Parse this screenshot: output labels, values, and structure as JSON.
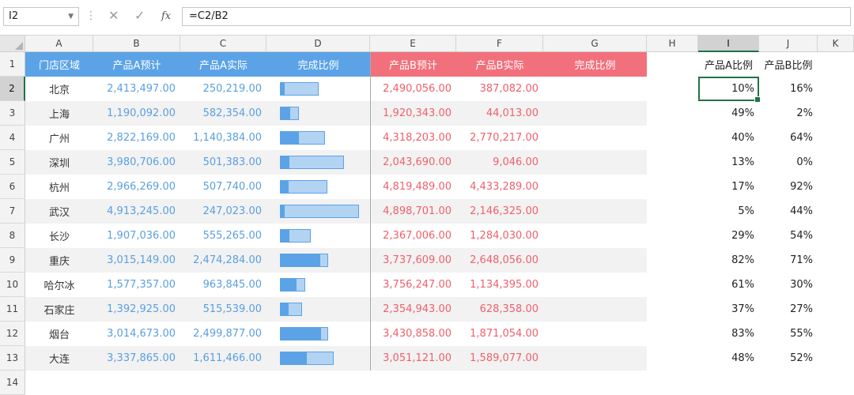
{
  "formula_bar": {
    "name_box": "I2",
    "cancel_icon": "✕",
    "confirm_icon": "✓",
    "fx_label": "fx",
    "formula": "=C2/B2"
  },
  "columns": [
    "A",
    "B",
    "C",
    "D",
    "E",
    "F",
    "G",
    "H",
    "I",
    "J",
    "K"
  ],
  "rows": [
    "1",
    "2",
    "3",
    "4",
    "5",
    "6",
    "7",
    "8",
    "9",
    "10",
    "11",
    "12",
    "13",
    "14"
  ],
  "selected_cell": "I2",
  "header": {
    "region": "门店区域",
    "a_forecast": "产品A预计",
    "a_actual": "产品A实际",
    "a_ratio": "完成比例",
    "b_forecast": "产品B预计",
    "b_actual": "产品B实际",
    "b_ratio": "完成比例",
    "ratio_a": "产品A比例",
    "ratio_b": "产品B比例"
  },
  "colors": {
    "blue_header": "#5ba3e6",
    "red_header": "#f2707c",
    "blue_text": "#5a9fe0",
    "red_text": "#f0606c",
    "bar_fill": "#5ba3e6",
    "bar_bg": "#b3d3f3",
    "selection": "#217346"
  },
  "data": [
    {
      "region": "北京",
      "a_forecast": "2,413,497.00",
      "a_actual": "250,219.00",
      "b_forecast": "2,490,056.00",
      "b_actual": "387,082.00",
      "ratio_a": "10%",
      "ratio_b": "16%",
      "bar_a_forecast": 2413497,
      "bar_a_ratio": 0.1
    },
    {
      "region": "上海",
      "a_forecast": "1,190,092.00",
      "a_actual": "582,354.00",
      "b_forecast": "1,920,343.00",
      "b_actual": "44,013.00",
      "ratio_a": "49%",
      "ratio_b": "2%",
      "bar_a_forecast": 1190092,
      "bar_a_ratio": 0.49
    },
    {
      "region": "广州",
      "a_forecast": "2,822,169.00",
      "a_actual": "1,140,384.00",
      "b_forecast": "4,318,203.00",
      "b_actual": "2,770,217.00",
      "ratio_a": "40%",
      "ratio_b": "64%",
      "bar_a_forecast": 2822169,
      "bar_a_ratio": 0.4
    },
    {
      "region": "深圳",
      "a_forecast": "3,980,706.00",
      "a_actual": "501,383.00",
      "b_forecast": "2,043,690.00",
      "b_actual": "9,046.00",
      "ratio_a": "13%",
      "ratio_b": "0%",
      "bar_a_forecast": 3980706,
      "bar_a_ratio": 0.13
    },
    {
      "region": "杭州",
      "a_forecast": "2,966,269.00",
      "a_actual": "507,740.00",
      "b_forecast": "4,819,489.00",
      "b_actual": "4,433,289.00",
      "ratio_a": "17%",
      "ratio_b": "92%",
      "bar_a_forecast": 2966269,
      "bar_a_ratio": 0.17
    },
    {
      "region": "武汉",
      "a_forecast": "4,913,245.00",
      "a_actual": "247,023.00",
      "b_forecast": "4,898,701.00",
      "b_actual": "2,146,325.00",
      "ratio_a": "5%",
      "ratio_b": "44%",
      "bar_a_forecast": 4913245,
      "bar_a_ratio": 0.05
    },
    {
      "region": "长沙",
      "a_forecast": "1,907,036.00",
      "a_actual": "555,265.00",
      "b_forecast": "2,367,006.00",
      "b_actual": "1,284,030.00",
      "ratio_a": "29%",
      "ratio_b": "54%",
      "bar_a_forecast": 1907036,
      "bar_a_ratio": 0.29
    },
    {
      "region": "重庆",
      "a_forecast": "3,015,149.00",
      "a_actual": "2,474,284.00",
      "b_forecast": "3,737,609.00",
      "b_actual": "2,648,056.00",
      "ratio_a": "82%",
      "ratio_b": "71%",
      "bar_a_forecast": 3015149,
      "bar_a_ratio": 0.82
    },
    {
      "region": "哈尔冰",
      "a_forecast": "1,577,357.00",
      "a_actual": "963,845.00",
      "b_forecast": "3,756,247.00",
      "b_actual": "1,134,395.00",
      "ratio_a": "61%",
      "ratio_b": "30%",
      "bar_a_forecast": 1577357,
      "bar_a_ratio": 0.61
    },
    {
      "region": "石家庄",
      "a_forecast": "1,392,925.00",
      "a_actual": "515,539.00",
      "b_forecast": "2,354,943.00",
      "b_actual": "628,358.00",
      "ratio_a": "37%",
      "ratio_b": "27%",
      "bar_a_forecast": 1392925,
      "bar_a_ratio": 0.37
    },
    {
      "region": "烟台",
      "a_forecast": "3,014,673.00",
      "a_actual": "2,499,877.00",
      "b_forecast": "3,430,858.00",
      "b_actual": "1,871,054.00",
      "ratio_a": "83%",
      "ratio_b": "55%",
      "bar_a_forecast": 3014673,
      "bar_a_ratio": 0.83
    },
    {
      "region": "大连",
      "a_forecast": "3,337,865.00",
      "a_actual": "1,611,466.00",
      "b_forecast": "3,051,121.00",
      "b_actual": "1,589,077.00",
      "ratio_a": "48%",
      "ratio_b": "52%",
      "bar_a_forecast": 3337865,
      "bar_a_ratio": 0.48
    }
  ]
}
